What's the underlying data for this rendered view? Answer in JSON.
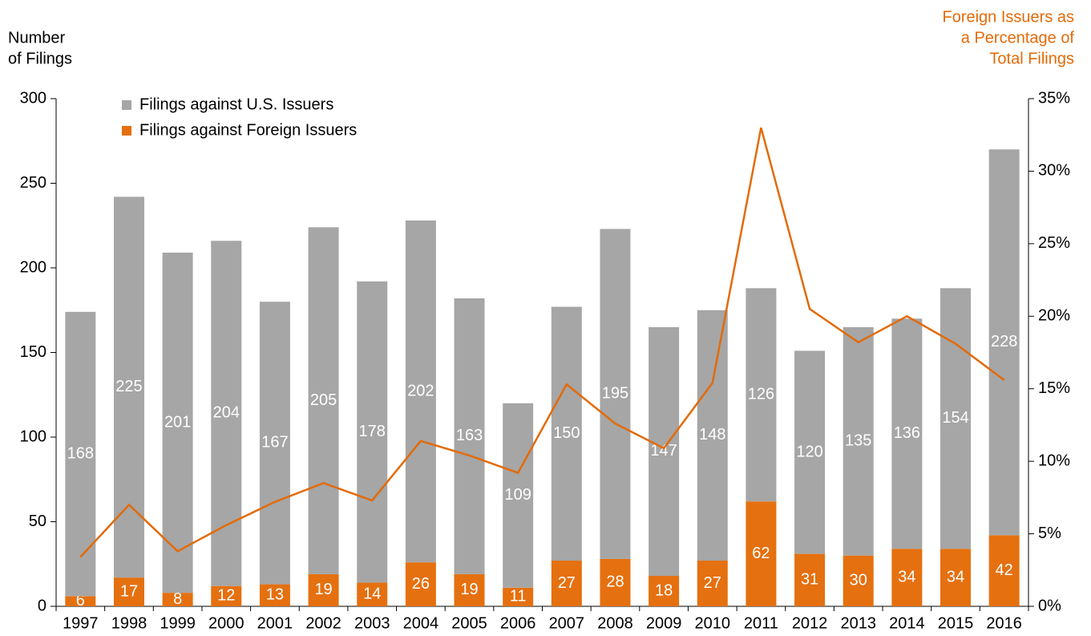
{
  "chart_data": {
    "type": "stacked-bar-line",
    "y_label": [
      "Number",
      "of Filings"
    ],
    "y2_label": [
      "Foreign Issuers as",
      "a Percentage of",
      "Total Filings"
    ],
    "categories": [
      "1997",
      "1998",
      "1999",
      "2000",
      "2001",
      "2002",
      "2003",
      "2004",
      "2005",
      "2006",
      "2007",
      "2008",
      "2009",
      "2010",
      "2011",
      "2012",
      "2013",
      "2014",
      "2015",
      "2016"
    ],
    "series": [
      {
        "name": "Filings against U.S. Issuers",
        "color": "#a6a6a6",
        "values": [
          168,
          225,
          201,
          204,
          167,
          205,
          178,
          202,
          163,
          109,
          150,
          195,
          147,
          148,
          126,
          120,
          135,
          136,
          154,
          228
        ]
      },
      {
        "name": "Filings against Foreign Issuers",
        "color": "#e5700f",
        "values": [
          6,
          17,
          8,
          12,
          13,
          19,
          14,
          26,
          19,
          11,
          27,
          28,
          18,
          27,
          62,
          31,
          30,
          34,
          34,
          42
        ]
      }
    ],
    "line": {
      "color": "#e26b0a",
      "axis": "y2",
      "values": [
        3.4,
        7.0,
        3.8,
        5.6,
        7.2,
        8.5,
        7.3,
        11.4,
        10.4,
        9.2,
        15.3,
        12.6,
        10.9,
        15.4,
        33.0,
        20.5,
        18.2,
        20.0,
        18.1,
        15.6
      ]
    },
    "ylim": [
      0,
      300
    ],
    "yticks": [
      0,
      50,
      100,
      150,
      200,
      250,
      300
    ],
    "y2lim": [
      0,
      35
    ],
    "y2ticks": [
      {
        "value": 0,
        "label": "0%"
      },
      {
        "value": 5,
        "label": "5%"
      },
      {
        "value": 10,
        "label": "10%"
      },
      {
        "value": 15,
        "label": "15%"
      },
      {
        "value": 20,
        "label": "20%"
      },
      {
        "value": 25,
        "label": "25%"
      },
      {
        "value": 30,
        "label": "30%"
      },
      {
        "value": 35,
        "label": "35%"
      }
    ],
    "label_color": "#ffffff",
    "y2_color": "#e26b0a"
  }
}
